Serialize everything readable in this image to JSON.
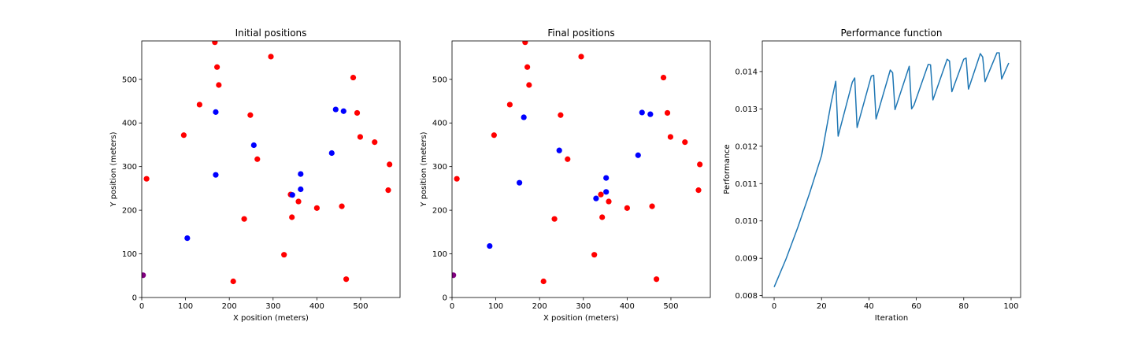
{
  "chart_data": [
    {
      "type": "scatter",
      "title": "Initial positions",
      "xlabel": "X position (meters)",
      "ylabel": "Y position (meters)",
      "xlim": [
        0,
        590
      ],
      "ylim": [
        0,
        588
      ],
      "xticks": [
        0,
        100,
        200,
        300,
        400,
        500
      ],
      "yticks": [
        0,
        100,
        200,
        300,
        400,
        500
      ],
      "grid": false,
      "series": [
        {
          "color": "#ff0000",
          "points": [
            [
              167,
              585
            ],
            [
              295,
              552
            ],
            [
              172,
              528
            ],
            [
              483,
              504
            ],
            [
              176,
              487
            ],
            [
              132,
              442
            ],
            [
              492,
              423
            ],
            [
              248,
              418
            ],
            [
              96,
              372
            ],
            [
              499,
              368
            ],
            [
              532,
              356
            ],
            [
              264,
              317
            ],
            [
              566,
              305
            ],
            [
              11,
              272
            ],
            [
              563,
              246
            ],
            [
              340,
              236
            ],
            [
              358,
              220
            ],
            [
              457,
              209
            ],
            [
              400,
              205
            ],
            [
              343,
              184
            ],
            [
              234,
              180
            ],
            [
              325,
              98
            ],
            [
              467,
              42
            ],
            [
              209,
              37
            ]
          ]
        },
        {
          "color": "#0000ff",
          "points": [
            [
              443,
              431
            ],
            [
              461,
              427
            ],
            [
              169,
              425
            ],
            [
              256,
              349
            ],
            [
              434,
              331
            ],
            [
              363,
              283
            ],
            [
              169,
              281
            ],
            [
              363,
              248
            ],
            [
              344,
              235
            ],
            [
              104,
              136
            ]
          ]
        },
        {
          "color": "#800080",
          "points": [
            [
              3,
              51
            ]
          ]
        }
      ]
    },
    {
      "type": "scatter",
      "title": "Final positions",
      "xlabel": "X position (meters)",
      "ylabel": "Y position (meters)",
      "xlim": [
        0,
        590
      ],
      "ylim": [
        0,
        588
      ],
      "xticks": [
        0,
        100,
        200,
        300,
        400,
        500
      ],
      "yticks": [
        0,
        100,
        200,
        300,
        400,
        500
      ],
      "grid": false,
      "series": [
        {
          "color": "#ff0000",
          "points": [
            [
              167,
              585
            ],
            [
              295,
              552
            ],
            [
              172,
              528
            ],
            [
              483,
              504
            ],
            [
              176,
              487
            ],
            [
              132,
              442
            ],
            [
              492,
              423
            ],
            [
              248,
              418
            ],
            [
              96,
              372
            ],
            [
              499,
              368
            ],
            [
              532,
              356
            ],
            [
              264,
              317
            ],
            [
              566,
              305
            ],
            [
              11,
              272
            ],
            [
              563,
              246
            ],
            [
              340,
              236
            ],
            [
              358,
              220
            ],
            [
              457,
              209
            ],
            [
              400,
              205
            ],
            [
              343,
              184
            ],
            [
              234,
              180
            ],
            [
              325,
              98
            ],
            [
              467,
              42
            ],
            [
              209,
              37
            ]
          ]
        },
        {
          "color": "#0000ff",
          "points": [
            [
              434,
              424
            ],
            [
              453,
              420
            ],
            [
              164,
              413
            ],
            [
              245,
              337
            ],
            [
              425,
              326
            ],
            [
              352,
              274
            ],
            [
              154,
              263
            ],
            [
              352,
              242
            ],
            [
              329,
              227
            ],
            [
              86,
              118
            ]
          ]
        },
        {
          "color": "#800080",
          "points": [
            [
              3,
              51
            ]
          ]
        }
      ]
    },
    {
      "type": "line",
      "title": "Performance function",
      "xlabel": "Iteration",
      "ylabel": "Performance",
      "xlim": [
        -5,
        104
      ],
      "ylim": [
        0.00795,
        0.01482
      ],
      "xticks": [
        0,
        20,
        40,
        60,
        80,
        100
      ],
      "yticks": [
        0.008,
        0.009,
        0.01,
        0.011,
        0.012,
        0.013,
        0.014
      ],
      "ytick_labels": [
        "0.008",
        "0.009",
        "0.010",
        "0.011",
        "0.012",
        "0.013",
        "0.014"
      ],
      "grid": false,
      "series": [
        {
          "color": "#1f77b4",
          "x": [
            0,
            5,
            10,
            15,
            20,
            24,
            26,
            27,
            33,
            34,
            35,
            41,
            42,
            43,
            49,
            50,
            51,
            57,
            58,
            59,
            65,
            66,
            67,
            73,
            74,
            75,
            80,
            81,
            82,
            87,
            88,
            89,
            94,
            95,
            96,
            99
          ],
          "y": [
            0.00823,
            0.00898,
            0.00983,
            0.01075,
            0.01175,
            0.01315,
            0.01374,
            0.01227,
            0.01372,
            0.01383,
            0.0125,
            0.01388,
            0.0139,
            0.01273,
            0.01404,
            0.01397,
            0.01298,
            0.01414,
            0.013,
            0.0131,
            0.01419,
            0.01418,
            0.01324,
            0.01433,
            0.01428,
            0.01346,
            0.01433,
            0.01436,
            0.01353,
            0.01448,
            0.01439,
            0.01373,
            0.0145,
            0.0145,
            0.0138,
            0.01423
          ]
        }
      ]
    }
  ]
}
